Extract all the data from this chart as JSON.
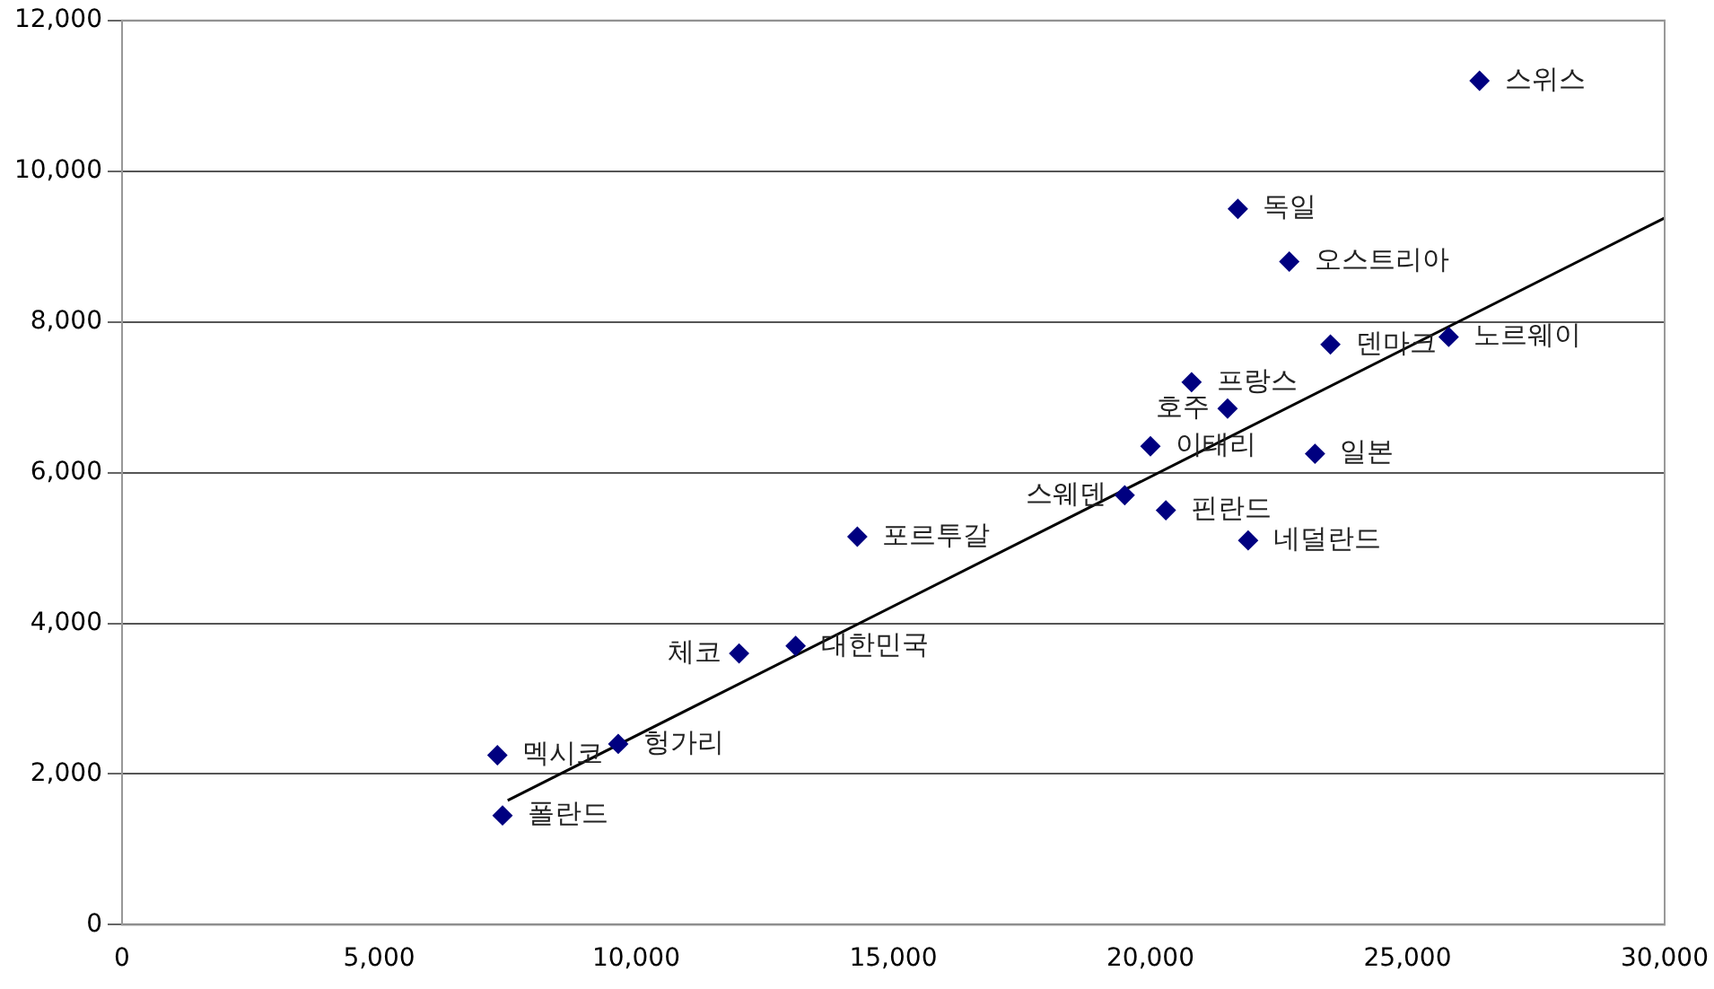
{
  "chart_data": {
    "type": "scatter",
    "xlim": [
      0,
      30000
    ],
    "ylim": [
      0,
      12000
    ],
    "xticks": [
      {
        "value": 0,
        "label": "0"
      },
      {
        "value": 5000,
        "label": "5,000"
      },
      {
        "value": 10000,
        "label": "10,000"
      },
      {
        "value": 15000,
        "label": "15,000"
      },
      {
        "value": 20000,
        "label": "20,000"
      },
      {
        "value": 25000,
        "label": "25,000"
      },
      {
        "value": 30000,
        "label": "30,000"
      }
    ],
    "yticks": [
      {
        "value": 0,
        "label": "0"
      },
      {
        "value": 2000,
        "label": "2,000"
      },
      {
        "value": 4000,
        "label": "4,000"
      },
      {
        "value": 6000,
        "label": "6,000"
      },
      {
        "value": 8000,
        "label": "8,000"
      },
      {
        "value": 10000,
        "label": "10,000"
      },
      {
        "value": 12000,
        "label": "12,000"
      }
    ],
    "grid": "y",
    "legend": false,
    "marker": "diamond",
    "series": [
      {
        "color": "#000080",
        "x": [
          26400,
          21700,
          22700,
          23500,
          25800,
          20800,
          21500,
          20000,
          23200,
          19500,
          20300,
          21900,
          14300,
          13100,
          12000,
          9650,
          7300,
          7400
        ],
        "values": [
          11200,
          9500,
          8800,
          7700,
          7800,
          7200,
          6850,
          6350,
          6250,
          5700,
          5500,
          5100,
          5150,
          3700,
          3600,
          2400,
          2250,
          1450
        ]
      },
      {
        "type": "line",
        "color": "#000000",
        "marker": "none",
        "x": [
          7500,
          30000
        ],
        "values": [
          1650,
          9380
        ]
      }
    ],
    "annotations": [
      {
        "text": "스위스",
        "x": 26400,
        "y": 11200
      },
      {
        "text": "독일",
        "x": 21700,
        "y": 9500
      },
      {
        "text": "오스트리아",
        "x": 22700,
        "y": 8800
      },
      {
        "text": "덴마크",
        "x": 23500,
        "y": 7700
      },
      {
        "text": "노르웨이",
        "x": 25800,
        "y": 7800
      },
      {
        "text": "프랑스",
        "x": 20800,
        "y": 7200
      },
      {
        "text": "호주",
        "x": 21500,
        "y": 6850
      },
      {
        "text": "이태리",
        "x": 20000,
        "y": 6350
      },
      {
        "text": "일본",
        "x": 23200,
        "y": 6250
      },
      {
        "text": "스웨덴",
        "x": 19500,
        "y": 5700
      },
      {
        "text": "핀란드",
        "x": 20300,
        "y": 5500
      },
      {
        "text": "네덜란드",
        "x": 21900,
        "y": 5100
      },
      {
        "text": "포르투갈",
        "x": 14300,
        "y": 5150
      },
      {
        "text": "대한민국",
        "x": 13100,
        "y": 3700
      },
      {
        "text": "체코",
        "x": 12000,
        "y": 3600
      },
      {
        "text": "헝가리",
        "x": 9650,
        "y": 2400
      },
      {
        "text": "멕시코",
        "x": 7300,
        "y": 2250
      },
      {
        "text": "폴란드",
        "x": 7400,
        "y": 1450
      }
    ]
  }
}
